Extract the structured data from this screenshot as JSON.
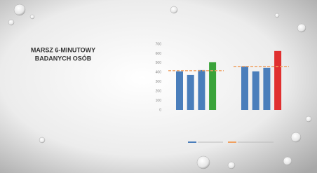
{
  "chart_data": {
    "type": "bar",
    "title": [
      "MARSZ 6-MINUTOWY",
      "BADANYCH OSÓB"
    ],
    "ylim": [
      0,
      700
    ],
    "yticks": [
      0,
      100,
      200,
      300,
      400,
      500,
      600,
      700
    ],
    "reference_color": "#f0a060",
    "groups": [
      {
        "values": [
          410,
          373,
          425,
          507
        ],
        "colors": [
          "#4a7ebb",
          "#4a7ebb",
          "#4a7ebb",
          "#3aa33a"
        ],
        "reference": 418
      },
      {
        "values": [
          463,
          410,
          448,
          627
        ],
        "colors": [
          "#4a7ebb",
          "#4a7ebb",
          "#4a7ebb",
          "#e03030"
        ],
        "reference": 463
      }
    ]
  }
}
